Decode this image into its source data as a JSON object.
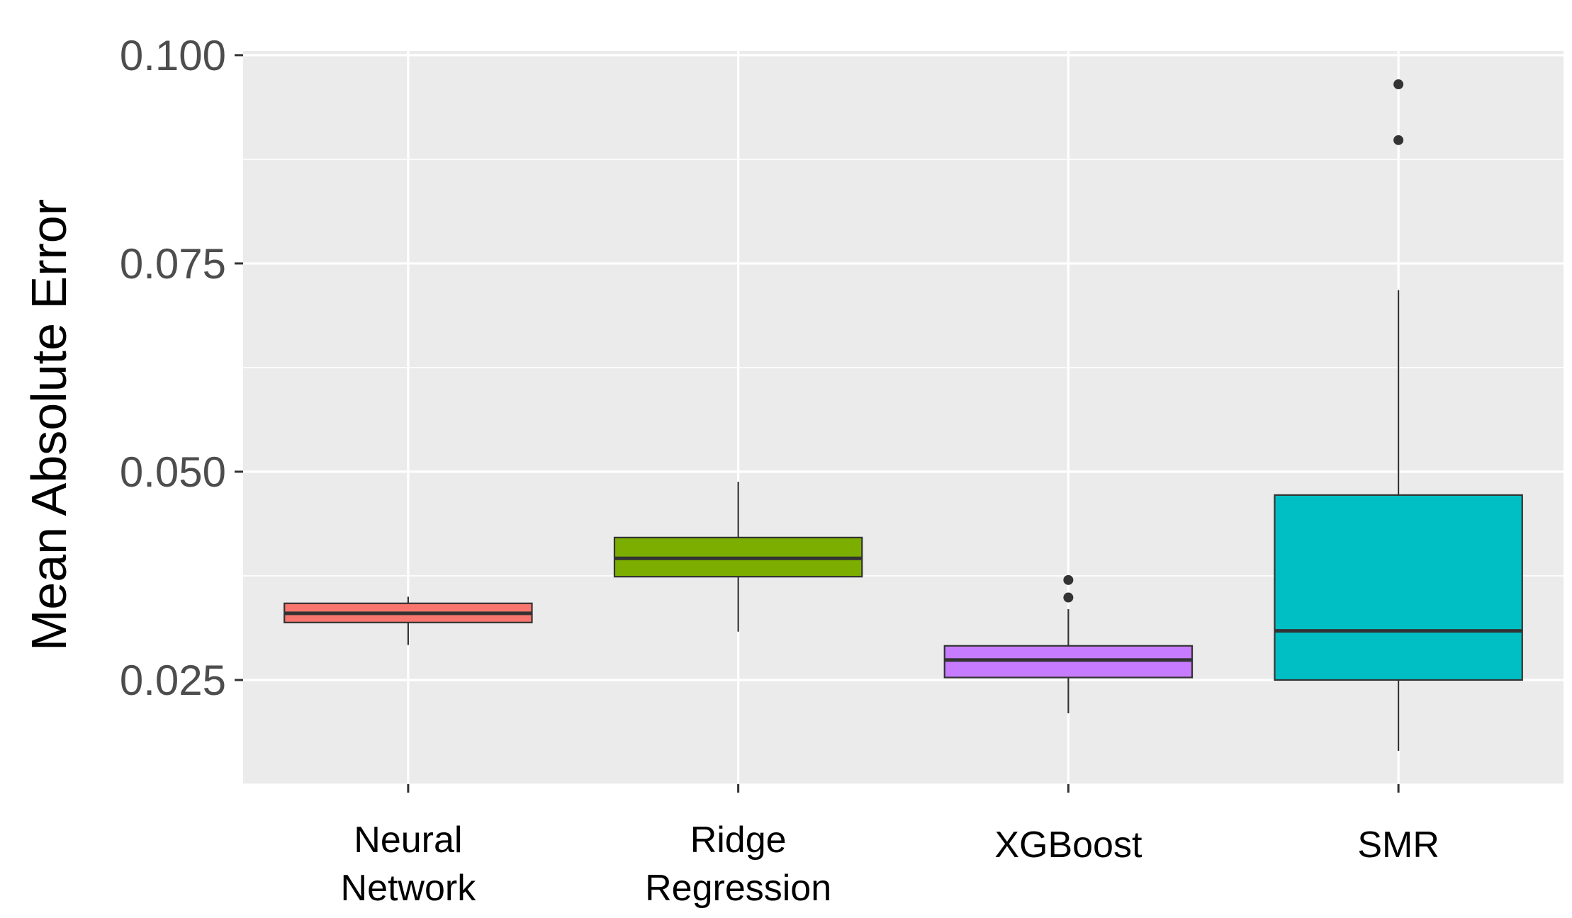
{
  "chart_data": {
    "type": "box",
    "title": "",
    "xlabel": "",
    "ylabel": "Mean Absolute Error",
    "ylim": [
      0.0125,
      0.1005
    ],
    "yticks": [
      0.025,
      0.05,
      0.075,
      0.1
    ],
    "ytick_labels": [
      "0.025",
      "0.050",
      "0.075",
      "0.100"
    ],
    "grid": true,
    "legend": "none",
    "categories": [
      {
        "label_lines": [
          "Neural",
          "Network"
        ],
        "color": "#F8766D",
        "whisker_low": 0.0292,
        "q1": 0.0319,
        "median": 0.033,
        "q3": 0.0342,
        "whisker_high": 0.035,
        "outliers": []
      },
      {
        "label_lines": [
          "Ridge",
          "Regression"
        ],
        "color": "#7CAE00",
        "whisker_low": 0.0308,
        "q1": 0.0374,
        "median": 0.0396,
        "q3": 0.0421,
        "whisker_high": 0.0488,
        "outliers": []
      },
      {
        "label_lines": [
          "XGBoost"
        ],
        "color": "#C77CFF",
        "whisker_low": 0.021,
        "q1": 0.0253,
        "median": 0.0274,
        "q3": 0.0291,
        "whisker_high": 0.0335,
        "outliers": [
          0.0349,
          0.037
        ]
      },
      {
        "label_lines": [
          "SMR"
        ],
        "color": "#00BFC4",
        "whisker_low": 0.0165,
        "q1": 0.025,
        "median": 0.0309,
        "q3": 0.0472,
        "whisker_high": 0.0718,
        "outliers": [
          0.0898,
          0.0965
        ]
      }
    ]
  }
}
